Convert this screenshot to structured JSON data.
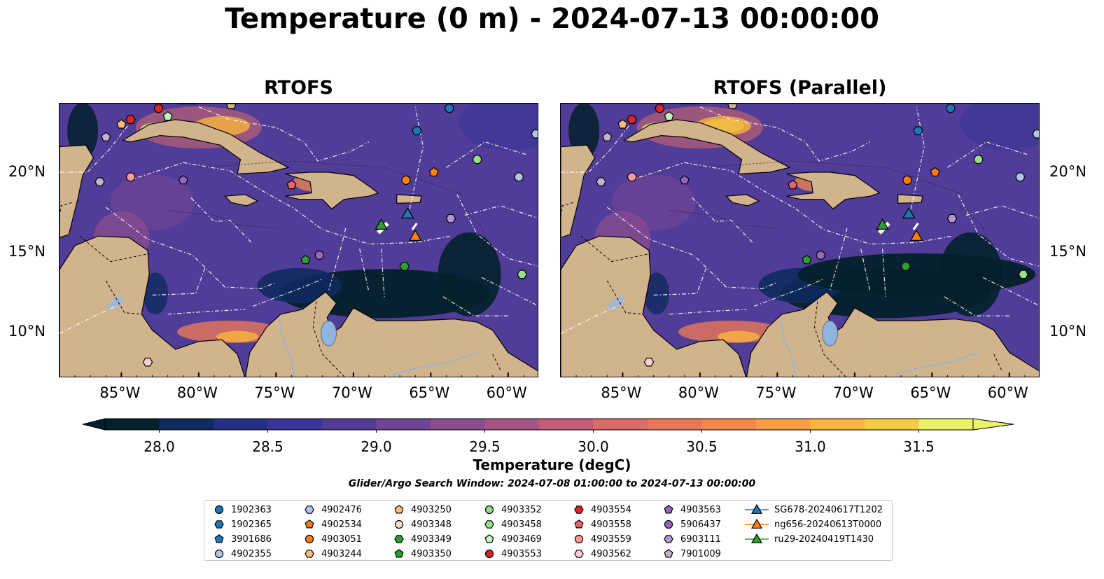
{
  "title": "Temperature (0 m) - 2024-07-13 00:00:00",
  "panels": [
    {
      "title": "RTOFS",
      "variant": "base"
    },
    {
      "title": "RTOFS (Parallel)",
      "variant": "parallel"
    }
  ],
  "axes": {
    "lon_ticks": [
      "85°W",
      "80°W",
      "75°W",
      "70°W",
      "65°W",
      "60°W"
    ],
    "lat_ticks": [
      "20°N",
      "15°N",
      "10°N"
    ],
    "lon_range": [
      -89,
      -58
    ],
    "lat_range": [
      7,
      24.2
    ]
  },
  "colorbar": {
    "label": "Temperature (degC)",
    "range": [
      28.0,
      31.5
    ],
    "ticks": [
      "28.0",
      "28.5",
      "29.0",
      "29.5",
      "30.0",
      "30.5",
      "31.0",
      "31.5"
    ],
    "colors": [
      "#03202b",
      "#0e2a5e",
      "#262f87",
      "#3a3597",
      "#513c98",
      "#6d4594",
      "#8a4d8e",
      "#a75485",
      "#c25c78",
      "#d96b69",
      "#e9775a",
      "#f1894d",
      "#f79d45",
      "#f9b43f",
      "#f6cc42",
      "#e8f36a"
    ],
    "extend": "both",
    "cmap": "thermal"
  },
  "search_window": "Glider/Argo Search Window: 2024-07-08 01:00:00 to 2024-07-13 00:00:00",
  "legend": {
    "columns": [
      [
        {
          "label": "1902363",
          "marker": "circle",
          "color": "#1f77b4"
        },
        {
          "label": "1902365",
          "marker": "hexagon",
          "color": "#1f77b4"
        },
        {
          "label": "3901686",
          "marker": "pentagon",
          "color": "#1f77b4"
        },
        {
          "label": "4902355",
          "marker": "circle",
          "color": "#aec7e8"
        }
      ],
      [
        {
          "label": "4902476",
          "marker": "hexagon",
          "color": "#aec7e8"
        },
        {
          "label": "4902534",
          "marker": "pentagon",
          "color": "#ff7f0e"
        },
        {
          "label": "4903051",
          "marker": "circle",
          "color": "#ff7f0e"
        },
        {
          "label": "4903244",
          "marker": "hexagon",
          "color": "#ffbb78"
        }
      ],
      [
        {
          "label": "4903250",
          "marker": "pentagon",
          "color": "#ffbb78"
        },
        {
          "label": "4903348",
          "marker": "circle",
          "color": "#ffdcb8"
        },
        {
          "label": "4903349",
          "marker": "hexagon",
          "color": "#2ca02c"
        },
        {
          "label": "4903350",
          "marker": "pentagon",
          "color": "#2ca02c"
        }
      ],
      [
        {
          "label": "4903352",
          "marker": "circle",
          "color": "#98df8a"
        },
        {
          "label": "4903458",
          "marker": "hexagon",
          "color": "#98df8a"
        },
        {
          "label": "4903469",
          "marker": "pentagon",
          "color": "#c7f5c0"
        },
        {
          "label": "4903553",
          "marker": "circle",
          "color": "#d62728"
        }
      ],
      [
        {
          "label": "4903554",
          "marker": "hexagon",
          "color": "#d62728"
        },
        {
          "label": "4903558",
          "marker": "pentagon",
          "color": "#e8646a"
        },
        {
          "label": "4903559",
          "marker": "circle",
          "color": "#ff9896"
        },
        {
          "label": "4903562",
          "marker": "hexagon",
          "color": "#ffcfcf"
        }
      ],
      [
        {
          "label": "4903563",
          "marker": "pentagon",
          "color": "#9467bd"
        },
        {
          "label": "5906437",
          "marker": "circle",
          "color": "#9467bd"
        },
        {
          "label": "6903111",
          "marker": "hexagon",
          "color": "#b195d4"
        },
        {
          "label": "7901009",
          "marker": "pentagon",
          "color": "#c5b0d5"
        }
      ],
      [
        {
          "label": "SG678-20240617T1202",
          "marker": "triangle",
          "color": "#1f77b4"
        },
        {
          "label": "ng656-20240613T0000",
          "marker": "triangle",
          "color": "#ff7f0e"
        },
        {
          "label": "ru29-20240419T1430",
          "marker": "triangle",
          "color": "#2ca02c"
        }
      ]
    ]
  },
  "map_markers": [
    {
      "marker": "circle",
      "color": "#1f77b4",
      "lon": -63.8,
      "lat": 23.9
    },
    {
      "marker": "hexagon",
      "color": "#1f77b4",
      "lon": -65.9,
      "lat": 22.5
    },
    {
      "marker": "circle",
      "color": "#aec7e8",
      "lon": -59.3,
      "lat": 19.6
    },
    {
      "marker": "hexagon",
      "color": "#aec7e8",
      "lon": -58.2,
      "lat": 22.3
    },
    {
      "marker": "pentagon",
      "color": "#ff7f0e",
      "lon": -64.8,
      "lat": 19.9
    },
    {
      "marker": "circle",
      "color": "#ff7f0e",
      "lon": -66.6,
      "lat": 19.4
    },
    {
      "marker": "pentagon",
      "color": "#ffbb78",
      "lon": -85.0,
      "lat": 22.9
    },
    {
      "marker": "hexagon",
      "color": "#2ca02c",
      "lon": -66.7,
      "lat": 14.0
    },
    {
      "marker": "pentagon",
      "color": "#2ca02c",
      "lon": -73.1,
      "lat": 14.4
    },
    {
      "marker": "circle",
      "color": "#98df8a",
      "lon": -62.0,
      "lat": 20.7
    },
    {
      "marker": "hexagon",
      "color": "#98df8a",
      "lon": -59.1,
      "lat": 13.5
    },
    {
      "marker": "pentagon",
      "color": "#c7f5c0",
      "lon": -82.0,
      "lat": 23.4
    },
    {
      "marker": "circle",
      "color": "#d62728",
      "lon": -82.6,
      "lat": 23.9
    },
    {
      "marker": "hexagon",
      "color": "#d62728",
      "lon": -84.4,
      "lat": 23.2
    },
    {
      "marker": "pentagon",
      "color": "#e8646a",
      "lon": -74.0,
      "lat": 19.1
    },
    {
      "marker": "circle",
      "color": "#ff9896",
      "lon": -84.4,
      "lat": 19.6
    },
    {
      "marker": "hexagon",
      "color": "#ffcfcf",
      "lon": -83.3,
      "lat": 8.0
    },
    {
      "marker": "pentagon",
      "color": "#9467bd",
      "lon": -81.0,
      "lat": 19.4
    },
    {
      "marker": "circle",
      "color": "#9467bd",
      "lon": -72.2,
      "lat": 14.7
    },
    {
      "marker": "hexagon",
      "color": "#b195d4",
      "lon": -63.7,
      "lat": 17.0
    },
    {
      "marker": "pentagon",
      "color": "#c5b0d5",
      "lon": -86.0,
      "lat": 22.1
    },
    {
      "marker": "hexagon",
      "color": "#c5b0d5",
      "lon": -86.4,
      "lat": 19.3
    },
    {
      "marker": "triangle",
      "color": "#1f77b4",
      "lon": -66.5,
      "lat": 17.3
    },
    {
      "marker": "triangle",
      "color": "#ff7f0e",
      "lon": -66.0,
      "lat": 15.9
    },
    {
      "marker": "triangle",
      "color": "#2ca02c",
      "lon": -68.2,
      "lat": 16.6
    }
  ]
}
